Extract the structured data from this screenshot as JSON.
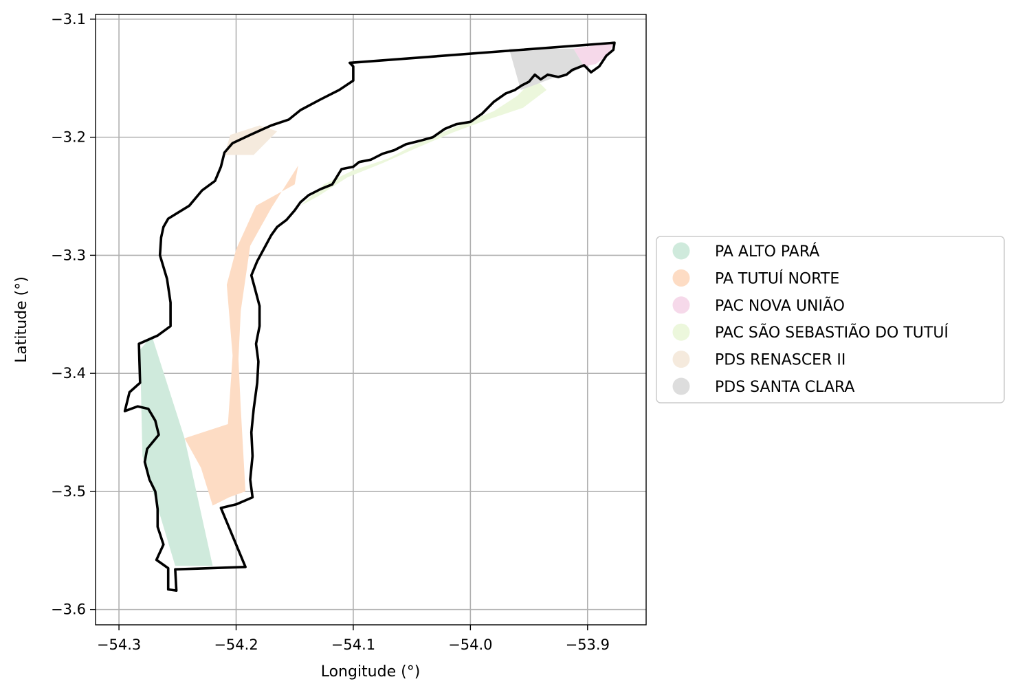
{
  "chart_data": {
    "type": "map",
    "xlabel": "Longitude (°)",
    "ylabel": "Latitude (°)",
    "xlim": [
      -54.32,
      -53.85
    ],
    "ylim": [
      -3.613,
      -3.096
    ],
    "grid": true,
    "legend_position": "center-right",
    "x_ticks": [
      {
        "value": -54.3,
        "label": "−54.3"
      },
      {
        "value": -54.2,
        "label": "−54.2"
      },
      {
        "value": -54.1,
        "label": "−54.1"
      },
      {
        "value": -54.0,
        "label": "−54.0"
      },
      {
        "value": -53.9,
        "label": "−53.9"
      }
    ],
    "y_ticks": [
      {
        "value": -3.1,
        "label": "−3.1"
      },
      {
        "value": -3.2,
        "label": "−3.2"
      },
      {
        "value": -3.3,
        "label": "−3.3"
      },
      {
        "value": -3.4,
        "label": "−3.4"
      },
      {
        "value": -3.5,
        "label": "−3.5"
      },
      {
        "value": -3.6,
        "label": "−3.6"
      }
    ],
    "settlements": [
      {
        "name": "PA ALTO PARÁ",
        "color": "#cfeadc",
        "polygon": [
          [
            -54.272,
            -3.368
          ],
          [
            -54.244,
            -3.455
          ],
          [
            -54.22,
            -3.563
          ],
          [
            -54.252,
            -3.563
          ],
          [
            -54.268,
            -3.51
          ],
          [
            -54.28,
            -3.47
          ],
          [
            -54.282,
            -3.38
          ]
        ]
      },
      {
        "name": "PA TUTUÍ NORTE",
        "color": "#fddcc4",
        "polygon": [
          [
            -54.147,
            -3.224
          ],
          [
            -54.17,
            -3.26
          ],
          [
            -54.188,
            -3.292
          ],
          [
            -54.196,
            -3.347
          ],
          [
            -54.198,
            -3.388
          ],
          [
            -54.196,
            -3.43
          ],
          [
            -54.192,
            -3.5
          ],
          [
            -54.206,
            -3.505
          ],
          [
            -54.22,
            -3.512
          ],
          [
            -54.23,
            -3.48
          ],
          [
            -54.244,
            -3.455
          ],
          [
            -54.207,
            -3.443
          ],
          [
            -54.203,
            -3.385
          ],
          [
            -54.208,
            -3.325
          ],
          [
            -54.2,
            -3.295
          ],
          [
            -54.183,
            -3.258
          ],
          [
            -54.15,
            -3.24
          ]
        ]
      },
      {
        "name": "PAC NOVA UNIÃO",
        "color": "#f6d9ea",
        "polygon": [
          [
            -53.912,
            -3.125
          ],
          [
            -53.878,
            -3.12
          ],
          [
            -53.882,
            -3.13
          ],
          [
            -53.893,
            -3.138
          ],
          [
            -53.903,
            -3.14
          ]
        ]
      },
      {
        "name": "PAC SÃO SEBASTIÃO DO TUTUÍ",
        "color": "#ecf7dc",
        "polygon": [
          [
            -54.145,
            -3.258
          ],
          [
            -54.125,
            -3.24
          ],
          [
            -54.1,
            -3.228
          ],
          [
            -54.07,
            -3.218
          ],
          [
            -54.045,
            -3.205
          ],
          [
            -54.01,
            -3.19
          ],
          [
            -53.98,
            -3.178
          ],
          [
            -53.96,
            -3.165
          ],
          [
            -53.945,
            -3.15
          ],
          [
            -53.935,
            -3.16
          ],
          [
            -53.955,
            -3.175
          ],
          [
            -53.985,
            -3.185
          ],
          [
            -54.015,
            -3.196
          ],
          [
            -54.048,
            -3.21
          ],
          [
            -54.075,
            -3.222
          ],
          [
            -54.105,
            -3.234
          ],
          [
            -54.13,
            -3.25
          ]
        ]
      },
      {
        "name": "PDS RENASCER II",
        "color": "#f5eadd",
        "polygon": [
          [
            -54.21,
            -3.215
          ],
          [
            -54.185,
            -3.215
          ],
          [
            -54.165,
            -3.195
          ],
          [
            -54.18,
            -3.19
          ],
          [
            -54.205,
            -3.198
          ]
        ]
      },
      {
        "name": "PDS SANTA CLARA",
        "color": "#dddddd",
        "polygon": [
          [
            -53.967,
            -3.125
          ],
          [
            -53.912,
            -3.125
          ],
          [
            -53.903,
            -3.14
          ],
          [
            -53.915,
            -3.146
          ],
          [
            -53.93,
            -3.15
          ],
          [
            -53.946,
            -3.156
          ],
          [
            -53.957,
            -3.16
          ]
        ]
      }
    ],
    "boundary": [
      [
        -54.103,
        -3.137
      ],
      [
        -53.877,
        -3.12
      ],
      [
        -53.878,
        -3.126
      ],
      [
        -53.884,
        -3.131
      ],
      [
        -53.89,
        -3.14
      ],
      [
        -53.897,
        -3.145
      ],
      [
        -53.903,
        -3.139
      ],
      [
        -53.913,
        -3.143
      ],
      [
        -53.918,
        -3.147
      ],
      [
        -53.925,
        -3.149
      ],
      [
        -53.934,
        -3.147
      ],
      [
        -53.94,
        -3.151
      ],
      [
        -53.945,
        -3.147
      ],
      [
        -53.95,
        -3.153
      ],
      [
        -53.956,
        -3.156
      ],
      [
        -53.962,
        -3.16
      ],
      [
        -53.97,
        -3.163
      ],
      [
        -53.98,
        -3.17
      ],
      [
        -53.99,
        -3.18
      ],
      [
        -54.0,
        -3.187
      ],
      [
        -54.012,
        -3.189
      ],
      [
        -54.022,
        -3.193
      ],
      [
        -54.032,
        -3.2
      ],
      [
        -54.043,
        -3.203
      ],
      [
        -54.055,
        -3.206
      ],
      [
        -54.065,
        -3.211
      ],
      [
        -54.075,
        -3.214
      ],
      [
        -54.085,
        -3.219
      ],
      [
        -54.095,
        -3.221
      ],
      [
        -54.1,
        -3.225
      ],
      [
        -54.11,
        -3.227
      ],
      [
        -54.118,
        -3.24
      ],
      [
        -54.128,
        -3.244
      ],
      [
        -54.138,
        -3.249
      ],
      [
        -54.145,
        -3.255
      ],
      [
        -54.15,
        -3.262
      ],
      [
        -54.157,
        -3.27
      ],
      [
        -54.165,
        -3.276
      ],
      [
        -54.17,
        -3.283
      ],
      [
        -54.176,
        -3.294
      ],
      [
        -54.182,
        -3.305
      ],
      [
        -54.187,
        -3.317
      ],
      [
        -54.184,
        -3.328
      ],
      [
        -54.18,
        -3.343
      ],
      [
        -54.18,
        -3.36
      ],
      [
        -54.183,
        -3.375
      ],
      [
        -54.181,
        -3.39
      ],
      [
        -54.182,
        -3.408
      ],
      [
        -54.185,
        -3.43
      ],
      [
        -54.187,
        -3.45
      ],
      [
        -54.186,
        -3.47
      ],
      [
        -54.188,
        -3.49
      ],
      [
        -54.186,
        -3.505
      ],
      [
        -54.2,
        -3.511
      ],
      [
        -54.213,
        -3.514
      ],
      [
        -54.192,
        -3.564
      ],
      [
        -54.252,
        -3.566
      ],
      [
        -54.251,
        -3.584
      ],
      [
        -54.258,
        -3.583
      ],
      [
        -54.258,
        -3.565
      ],
      [
        -54.268,
        -3.558
      ],
      [
        -54.262,
        -3.545
      ],
      [
        -54.267,
        -3.53
      ],
      [
        -54.267,
        -3.515
      ],
      [
        -54.269,
        -3.5
      ],
      [
        -54.274,
        -3.49
      ],
      [
        -54.278,
        -3.475
      ],
      [
        -54.276,
        -3.464
      ],
      [
        -54.266,
        -3.452
      ],
      [
        -54.269,
        -3.44
      ],
      [
        -54.275,
        -3.43
      ],
      [
        -54.284,
        -3.428
      ],
      [
        -54.295,
        -3.432
      ],
      [
        -54.291,
        -3.416
      ],
      [
        -54.282,
        -3.408
      ],
      [
        -54.283,
        -3.375
      ],
      [
        -54.267,
        -3.368
      ],
      [
        -54.256,
        -3.36
      ],
      [
        -54.256,
        -3.34
      ],
      [
        -54.259,
        -3.32
      ],
      [
        -54.265,
        -3.3
      ],
      [
        -54.264,
        -3.285
      ],
      [
        -54.262,
        -3.276
      ],
      [
        -54.258,
        -3.269
      ],
      [
        -54.24,
        -3.258
      ],
      [
        -54.229,
        -3.245
      ],
      [
        -54.218,
        -3.237
      ],
      [
        -54.213,
        -3.225
      ],
      [
        -54.21,
        -3.213
      ],
      [
        -54.203,
        -3.205
      ],
      [
        -54.188,
        -3.198
      ],
      [
        -54.17,
        -3.19
      ],
      [
        -54.155,
        -3.185
      ],
      [
        -54.145,
        -3.177
      ],
      [
        -54.128,
        -3.168
      ],
      [
        -54.112,
        -3.16
      ],
      [
        -54.1,
        -3.152
      ],
      [
        -54.1,
        -3.14
      ]
    ]
  }
}
